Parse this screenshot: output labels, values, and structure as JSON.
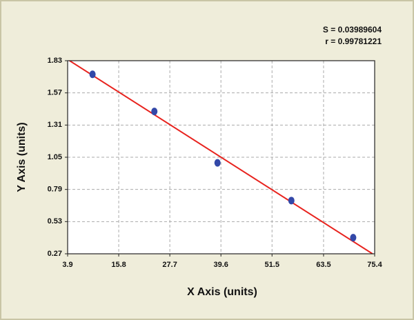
{
  "chart_data": {
    "type": "scatter",
    "xlabel": "X Axis (units)",
    "ylabel": "Y Axis (units)",
    "annotations": [
      "S = 0.03989604",
      "r = 0.99781221"
    ],
    "xlim": [
      3.9,
      75.4
    ],
    "ylim": [
      0.27,
      1.83
    ],
    "xticks": [
      3.9,
      15.8,
      27.7,
      39.6,
      51.5,
      63.5,
      75.4
    ],
    "yticks": [
      0.27,
      0.53,
      0.79,
      1.05,
      1.31,
      1.57,
      1.83
    ],
    "grid": true,
    "series": [
      {
        "color": "#3348a8",
        "x": [
          9.7,
          24.1,
          38.8,
          56.0,
          70.4
        ],
        "values": [
          1.72,
          1.42,
          1.005,
          0.7,
          0.4
        ]
      }
    ],
    "fit_line": {
      "color": "#e8231e",
      "x": [
        3.9,
        74.9
      ],
      "values": [
        1.84,
        0.27
      ]
    }
  }
}
